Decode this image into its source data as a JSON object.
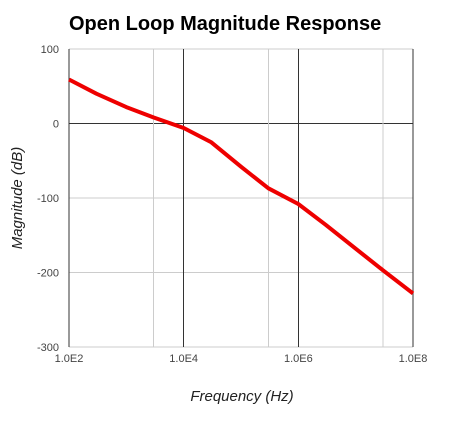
{
  "chart_data": {
    "type": "line",
    "title": "Open Loop Magnitude Response",
    "xlabel": "Frequency (Hz)",
    "ylabel": "Magnitude (dB)",
    "x_scale": "log",
    "xlim": [
      100,
      100000000
    ],
    "ylim": [
      -300,
      100
    ],
    "x_ticks": [
      {
        "value": 100,
        "label": "1.0E2"
      },
      {
        "value": 10000,
        "label": "1.0E4"
      },
      {
        "value": 1000000,
        "label": "1.0E6"
      },
      {
        "value": 100000000,
        "label": "1.0E8"
      }
    ],
    "y_ticks": [
      {
        "value": 100,
        "label": "100"
      },
      {
        "value": 0,
        "label": "0"
      },
      {
        "value": -100,
        "label": "-100"
      },
      {
        "value": -200,
        "label": "-200"
      },
      {
        "value": -300,
        "label": "-300"
      }
    ],
    "x_minor_gridlines": [
      3000,
      300000,
      30000000
    ],
    "grid": true,
    "legend": "none",
    "series": [
      {
        "color": "#ee0000",
        "points": [
          {
            "x": 100,
            "y": 59
          },
          {
            "x": 300,
            "y": 40
          },
          {
            "x": 1000,
            "y": 22
          },
          {
            "x": 3000,
            "y": 8
          },
          {
            "x": 10000,
            "y": -6
          },
          {
            "x": 30000,
            "y": -25
          },
          {
            "x": 100000,
            "y": -58
          },
          {
            "x": 300000,
            "y": -87
          },
          {
            "x": 1000000,
            "y": -108
          },
          {
            "x": 3000000,
            "y": -136
          },
          {
            "x": 10000000,
            "y": -168
          },
          {
            "x": 30000000,
            "y": -197
          },
          {
            "x": 100000000,
            "y": -228
          }
        ]
      }
    ]
  }
}
